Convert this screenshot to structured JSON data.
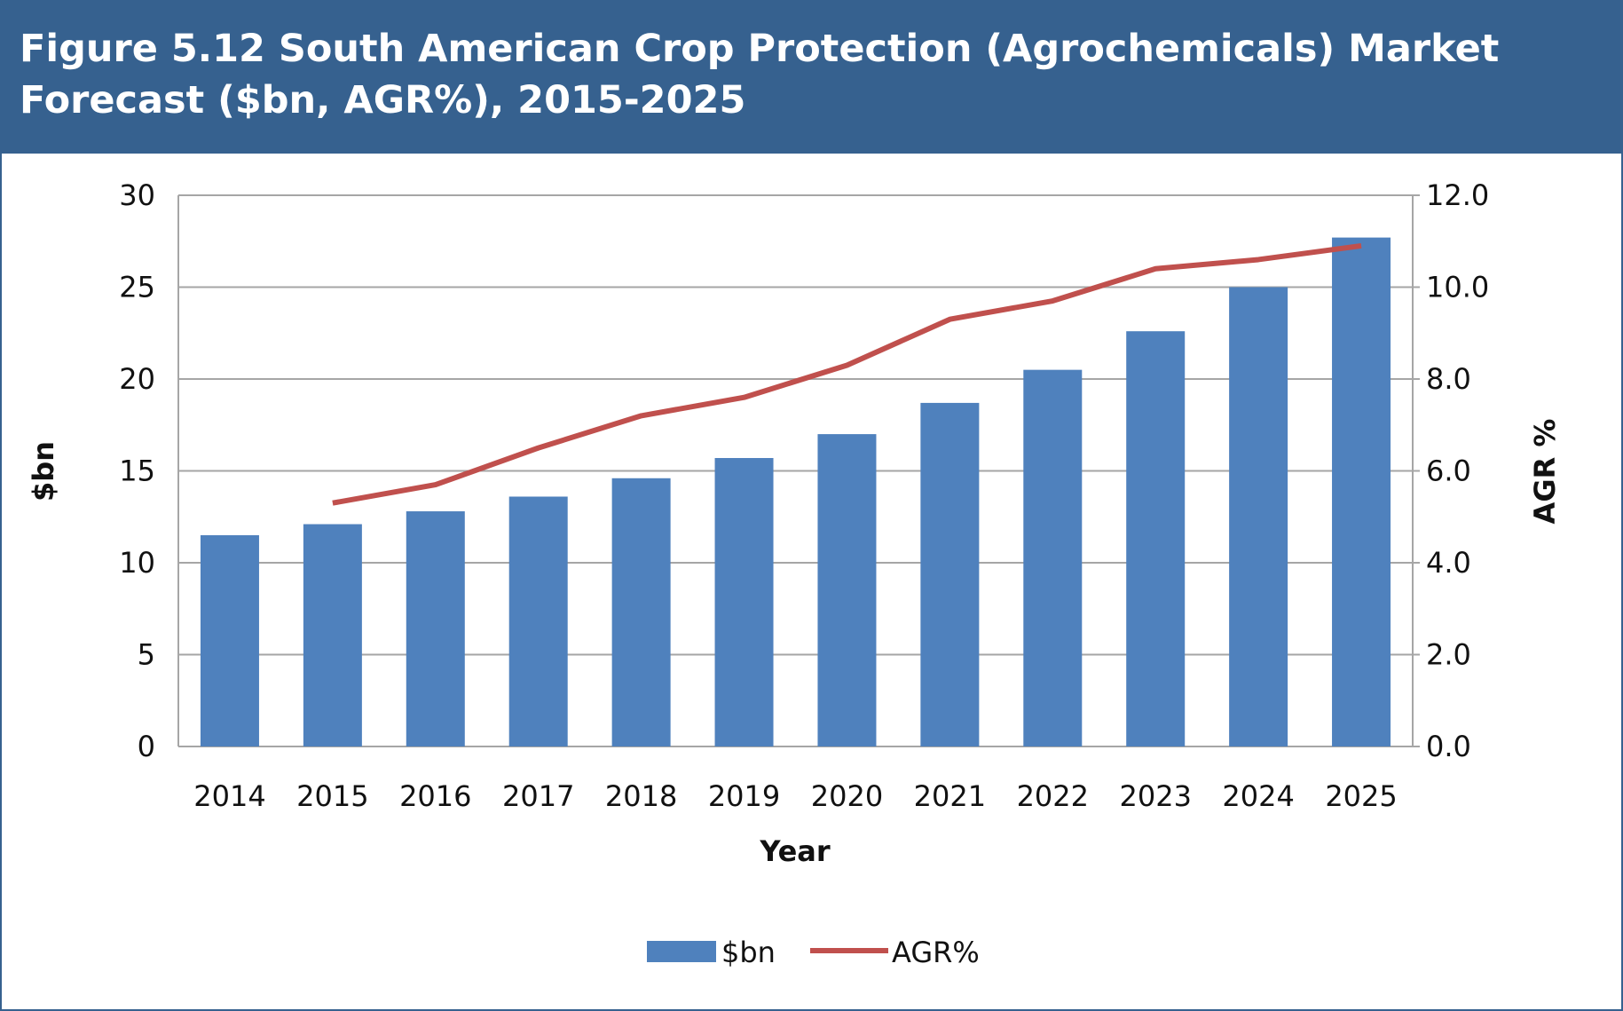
{
  "header": {
    "title": "Figure 5.12 South American Crop Protection (Agrochemicals) Market Forecast ($bn, AGR%), 2015-2025"
  },
  "colors": {
    "header_bg": "#36618f",
    "bar": "#4f81bd",
    "line": "#c0504d",
    "grid": "#a6a6a6"
  },
  "chart_data": {
    "type": "bar+line",
    "title": "Figure 5.12 South American Crop Protection (Agrochemicals) Market Forecast ($bn, AGR%), 2015-2025",
    "xlabel": "Year",
    "ylabel": "$bn",
    "y2label": "AGR %",
    "categories": [
      "2014",
      "2015",
      "2016",
      "2017",
      "2018",
      "2019",
      "2020",
      "2021",
      "2022",
      "2023",
      "2024",
      "2025"
    ],
    "ylim": [
      0,
      30
    ],
    "yticks": [
      "0",
      "5",
      "10",
      "15",
      "20",
      "25",
      "30"
    ],
    "y2lim": [
      0,
      12
    ],
    "y2ticks": [
      "0.0",
      "2.0",
      "4.0",
      "6.0",
      "8.0",
      "10.0",
      "12.0"
    ],
    "grid": true,
    "legend_position": "bottom",
    "series": [
      {
        "name": "$bn",
        "type": "bar",
        "axis": "left",
        "values": [
          11.5,
          12.1,
          12.8,
          13.6,
          14.6,
          15.7,
          17.0,
          18.7,
          20.5,
          22.6,
          25.0,
          27.7
        ]
      },
      {
        "name": "AGR%",
        "type": "line",
        "axis": "right",
        "values": [
          null,
          5.3,
          5.7,
          6.5,
          7.2,
          7.6,
          8.3,
          9.3,
          9.7,
          10.4,
          10.6,
          10.9
        ]
      }
    ]
  }
}
